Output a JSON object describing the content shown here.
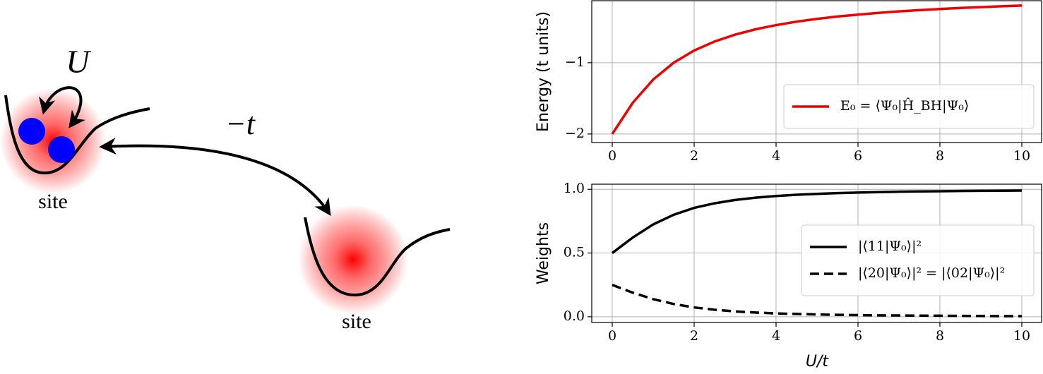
{
  "diagram": {
    "labels": [
      "U",
      "−t",
      "site",
      "site"
    ]
  },
  "chart_data": [
    {
      "type": "line",
      "ylabel": "Energy (t units)",
      "x": [
        0,
        0.5,
        1,
        1.5,
        2,
        2.5,
        3,
        3.5,
        4,
        4.5,
        5,
        5.5,
        6,
        6.5,
        7,
        7.5,
        8,
        8.5,
        9,
        9.5,
        10
      ],
      "series": [
        {
          "name": "E₀ = ⟨Ψ₀|Ĥ_BH|Ψ₀⟩",
          "color": "#ee0000",
          "linestyle": "solid",
          "values": [
            -2,
            -1.562,
            -1.236,
            -1,
            -0.828,
            -0.702,
            -0.606,
            -0.531,
            -0.472,
            -0.424,
            -0.385,
            -0.352,
            -0.325,
            -0.301,
            -0.28,
            -0.262,
            -0.246,
            -0.232,
            -0.22,
            -0.208,
            -0.198
          ]
        }
      ],
      "xlim": [
        -0.5,
        10.5
      ],
      "ylim": [
        -2.12,
        -0.13
      ],
      "xticks": [
        0,
        2,
        4,
        6,
        8,
        10
      ],
      "yticks": [
        {
          "value": -2,
          "label": "−2"
        },
        {
          "value": -1,
          "label": "−1"
        }
      ],
      "grid": true,
      "legend": "lower right"
    },
    {
      "type": "line",
      "ylabel": "Weights",
      "xlabel": "U/t",
      "x": [
        0,
        0.5,
        1,
        1.5,
        2,
        2.5,
        3,
        3.5,
        4,
        4.5,
        5,
        5.5,
        6,
        6.5,
        7,
        7.5,
        8,
        8.5,
        9,
        9.5,
        10
      ],
      "series": [
        {
          "name": "|⟨11|Ψ₀⟩|²",
          "color": "#000000",
          "linestyle": "solid",
          "values": [
            0.5,
            0.621,
            0.724,
            0.8,
            0.854,
            0.89,
            0.916,
            0.934,
            0.947,
            0.957,
            0.964,
            0.97,
            0.974,
            0.978,
            0.981,
            0.983,
            0.985,
            0.987,
            0.988,
            0.989,
            0.99
          ]
        },
        {
          "name": "|⟨20|Ψ₀⟩|² = |⟨02|Ψ₀⟩|²",
          "color": "#000000",
          "linestyle": "dashed",
          "values": [
            0.25,
            0.189,
            0.138,
            0.1,
            0.073,
            0.055,
            0.042,
            0.033,
            0.026,
            0.022,
            0.018,
            0.015,
            0.013,
            0.011,
            0.01,
            0.009,
            0.008,
            0.007,
            0.006,
            0.005,
            0.005
          ]
        }
      ],
      "xlim": [
        -0.5,
        10.5
      ],
      "ylim": [
        -0.045,
        1.04
      ],
      "xticks": [
        0,
        2,
        4,
        6,
        8,
        10
      ],
      "yticks": [
        {
          "value": 0,
          "label": "0.0"
        },
        0.5,
        {
          "value": 1,
          "label": "1.0"
        }
      ],
      "grid": true,
      "legend": "center right"
    }
  ]
}
